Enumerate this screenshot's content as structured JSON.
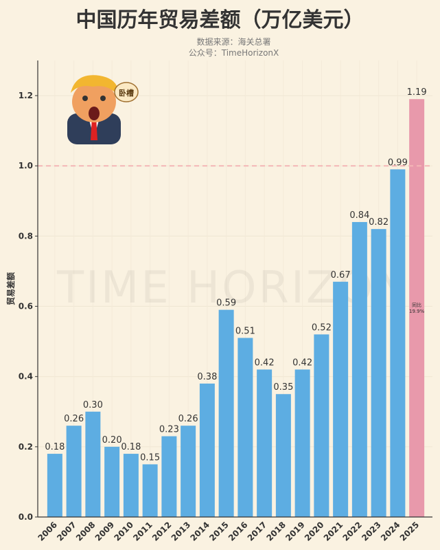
{
  "chart_data": {
    "type": "bar",
    "title": "中国历年贸易差额（万亿美元）",
    "subtitle_lines": [
      "数据来源：海关总署",
      "公众号：TimeHorizonX"
    ],
    "xlabel": "",
    "ylabel": "贸易差额",
    "ylim": [
      0,
      1.3
    ],
    "yticks": [
      0.0,
      0.2,
      0.4,
      0.6,
      0.8,
      1.0,
      1.2
    ],
    "grid": true,
    "categories": [
      "2006",
      "2007",
      "2008",
      "2009",
      "2010",
      "2011",
      "2012",
      "2013",
      "2014",
      "2015",
      "2016",
      "2017",
      "2018",
      "2019",
      "2020",
      "2021",
      "2022",
      "2023",
      "2024",
      "2025"
    ],
    "values": [
      0.18,
      0.26,
      0.3,
      0.2,
      0.18,
      0.15,
      0.23,
      0.26,
      0.38,
      0.59,
      0.51,
      0.42,
      0.35,
      0.42,
      0.52,
      0.67,
      0.84,
      0.82,
      0.99,
      1.19
    ],
    "data_labels": [
      "0.18",
      "0.26",
      "0.30",
      "0.20",
      "0.18",
      "0.15",
      "0.23",
      "0.26",
      "0.38",
      "0.59",
      "0.51",
      "0.42",
      "0.35",
      "0.42",
      "0.52",
      "0.67",
      "0.84",
      "0.82",
      "0.99",
      "1.19"
    ],
    "colors": {
      "default": "#5dade2",
      "highlight": "#e899ab",
      "reference_line": "#f4b6b6"
    },
    "highlight_index": 19,
    "reference_line": 1.0,
    "bar_annotation": {
      "index": 19,
      "lines": [
        "同比",
        "19.9%"
      ]
    },
    "watermark": "TIME HORIZON",
    "speech_bubble": "卧槽"
  }
}
